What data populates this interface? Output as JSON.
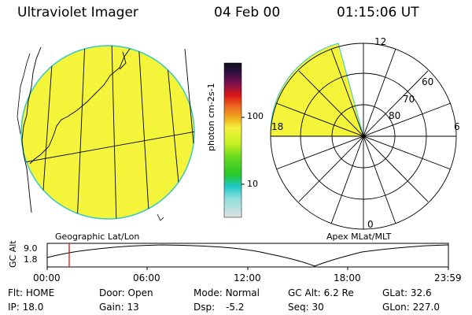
{
  "header": {
    "title": "Ultraviolet Imager",
    "date": "04 Feb 00",
    "time": "01:15:06 UT"
  },
  "colorbar": {
    "unit_label": "photon cm-2s-1",
    "ticks": [
      "100",
      "10"
    ]
  },
  "geo_panel": {
    "caption": "Geographic Lat/Lon",
    "fill_color": "#f4f43a"
  },
  "polar_panel": {
    "caption": "Apex MLat/MLT",
    "lat_labels": [
      "80",
      "70",
      "60"
    ],
    "mlt_labels": {
      "top": "12",
      "left": "18",
      "right": "6",
      "bottom": "0"
    }
  },
  "altitude_plot": {
    "ylabel": "GC Alt",
    "yticks": [
      "9.0",
      "1.8"
    ],
    "xticks": [
      "00:00",
      "06:00",
      "12:00",
      "18:00",
      "23:59"
    ],
    "marker_time": "01:15",
    "marker_color": "#e00000"
  },
  "info": {
    "flt_label": "Flt:",
    "flt_value": "HOME",
    "ip_label": "IP:",
    "ip_value": "18.0",
    "door_label": "Door:",
    "door_value": "Open",
    "gain_label": "Gain:",
    "gain_value": "13",
    "mode_label": "Mode:",
    "mode_value": "Normal",
    "dsp_label": "Dsp:",
    "dsp_value": "-5.2",
    "gcalt_label": "GC Alt:",
    "gcalt_value": "6.2 Re",
    "seq_label": "Seq:",
    "seq_value": "30",
    "glat_label": "GLat:",
    "glat_value": "32.6",
    "glon_label": "GLon:",
    "glon_value": "227.0"
  }
}
